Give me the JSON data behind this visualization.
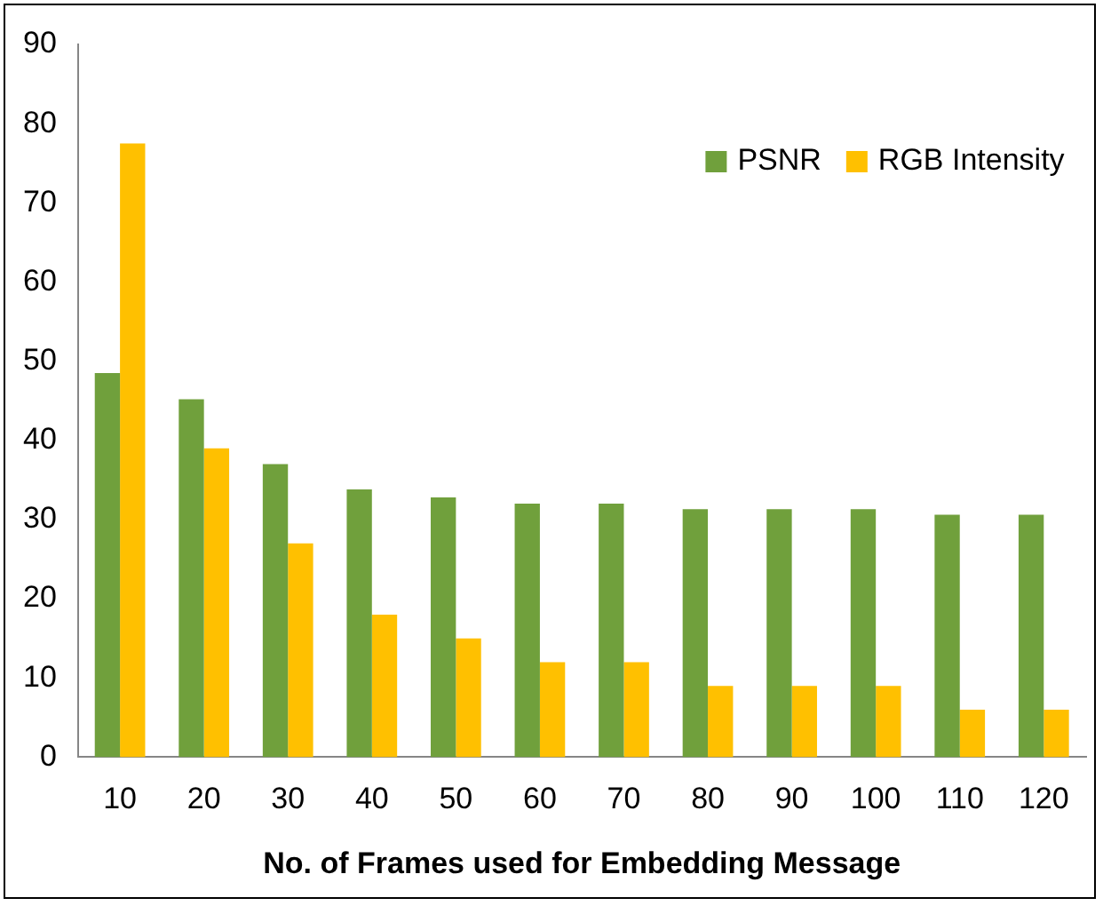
{
  "chart_data": {
    "type": "bar",
    "xlabel": "No. of Frames used for Embedding Message",
    "categories": [
      "10",
      "20",
      "30",
      "40",
      "50",
      "60",
      "70",
      "80",
      "90",
      "100",
      "110",
      "120"
    ],
    "series": [
      {
        "name": "PSNR",
        "color": "#70a03c",
        "values": [
          48.5,
          45.2,
          37,
          33.8,
          32.8,
          32,
          32,
          31.3,
          31.3,
          31.3,
          30.6,
          30.6
        ]
      },
      {
        "name": "RGB Intensity",
        "color": "#ffc000",
        "values": [
          77.5,
          39,
          27,
          18,
          15,
          12,
          12,
          9,
          9,
          9,
          6,
          6
        ]
      }
    ],
    "ylim": [
      0,
      90
    ],
    "yticks": [
      0,
      10,
      20,
      30,
      40,
      50,
      60,
      70,
      80,
      90
    ],
    "grid": false,
    "legend": "top right"
  }
}
